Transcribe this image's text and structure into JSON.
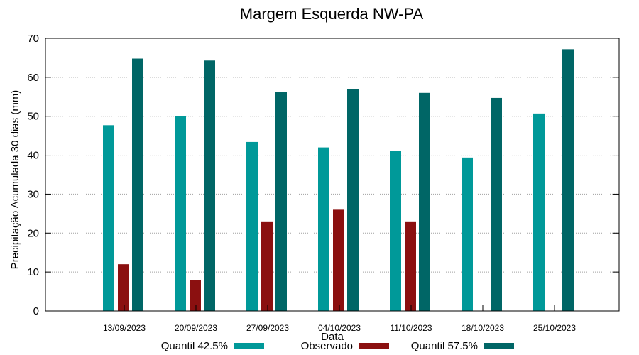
{
  "chart_data": {
    "type": "bar",
    "title": "Margem Esquerda NW-PA",
    "xlabel": "Data",
    "ylabel": "Precipitação Acumulada 30 dias (mm)",
    "ylim": [
      0,
      70
    ],
    "yticks": [
      0,
      10,
      20,
      30,
      40,
      50,
      60,
      70
    ],
    "grid": true,
    "legend_position": "bottom",
    "categories": [
      "13/09/2023",
      "20/09/2023",
      "27/09/2023",
      "04/10/2023",
      "11/10/2023",
      "18/10/2023",
      "25/10/2023"
    ],
    "series": [
      {
        "name": "Quantil 42.5%",
        "color": "#009999",
        "values": [
          47.7,
          50.0,
          43.4,
          42.0,
          41.1,
          39.4,
          50.7
        ]
      },
      {
        "name": "Observado",
        "color": "#8b1010",
        "values": [
          12.0,
          8.0,
          23.0,
          26.0,
          23.0,
          null,
          null
        ]
      },
      {
        "name": "Quantil 57.5%",
        "color": "#006666",
        "values": [
          64.8,
          64.3,
          56.3,
          56.9,
          56.0,
          54.7,
          67.2
        ]
      }
    ]
  }
}
